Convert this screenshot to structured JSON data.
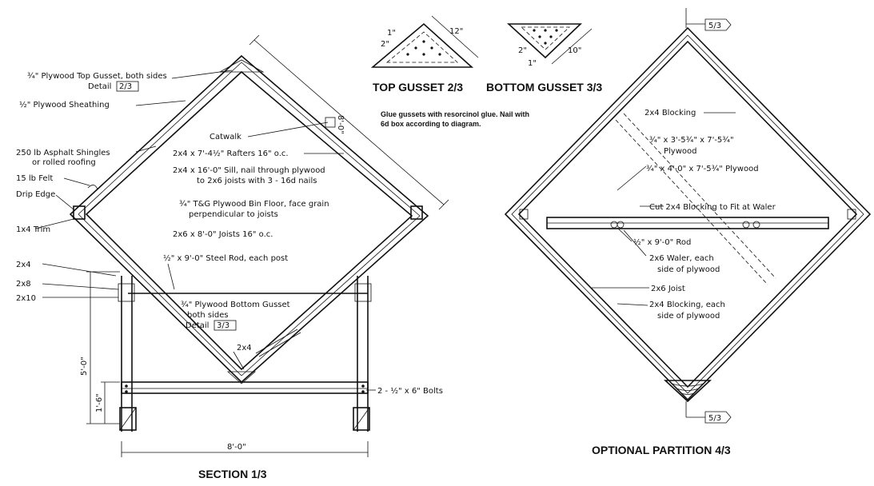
{
  "section": {
    "title": "SECTION  1/3",
    "labels": {
      "top_gusset_1": "¾\" Plywood Top Gusset, both sides",
      "top_gusset_2": "Detail",
      "top_gusset_ref": "2/3",
      "sheathing": "½\" Plywood Sheathing",
      "catwalk": "Catwalk",
      "dim_diag": "8'-0\"",
      "shingles_1": "250 lb Asphalt Shingles",
      "shingles_2": "or rolled roofing",
      "rafters": "2x4 x 7'-4½\" Rafters 16\" o.c.",
      "felt": "15 lb Felt",
      "sill_1": "2x4 x 16'-0\" Sill, nail through plywood",
      "sill_2": "to 2x6 joists with 3 - 16d nails",
      "drip": "Drip Edge",
      "floor_1": "¾\" T&G Plywood Bin Floor, face grain",
      "floor_2": "perpendicular to joists",
      "trim": "1x4 Trim",
      "joists": "2x6 x 8'-0\" Joists 16\" o.c.",
      "rod": "½\" x 9'-0\" Steel Rod, each post",
      "l2x4": "2x4",
      "l2x8": "2x8",
      "l2x10": "2x10",
      "bottom_gusset_1": "¾\" Plywood Bottom Gusset",
      "bottom_gusset_2": "both sides",
      "bottom_gusset_3": "Detail",
      "bottom_gusset_ref": "3/3",
      "l2x4b": "2x4",
      "dim_5": "5'-0\"",
      "dim_1": "1'-6\"",
      "bolts": "2 - ½\" x 6\" Bolts",
      "dim_8": "8'-0\""
    }
  },
  "top_gusset": {
    "title": "TOP GUSSET 2/3",
    "dim_a": "1\"",
    "dim_b": "2\"",
    "dim_c": "12\""
  },
  "bottom_gusset": {
    "title": "BOTTOM GUSSET 3/3",
    "dim_a": "2\"",
    "dim_b": "1\"",
    "dim_c": "10\""
  },
  "glue_note": {
    "line1": "Glue gussets with resorcinol glue. Nail with",
    "line2": "6d box according to diagram."
  },
  "partition": {
    "title": "OPTIONAL PARTITION   4/3",
    "ref_top": "5/3",
    "ref_bottom": "5/3",
    "labels": {
      "blocking": "2x4 Blocking",
      "plywood_a_1": "¾\" x 3'-5¾\" x 7'-5¾\"",
      "plywood_a_2": "Plywood",
      "plywood_b": "¾\" x 4'-0\" x 7'-5¾\" Plywood",
      "cut_blocking": "Cut 2x4 Blocking to Fit at Waler",
      "rod": "½\" x 9'-0\" Rod",
      "waler_1": "2x6 Waler, each",
      "waler_2": "side of plywood",
      "joist": "2x6 Joist",
      "blocking2_1": "2x4 Blocking, each",
      "blocking2_2": "side of plywood"
    }
  }
}
